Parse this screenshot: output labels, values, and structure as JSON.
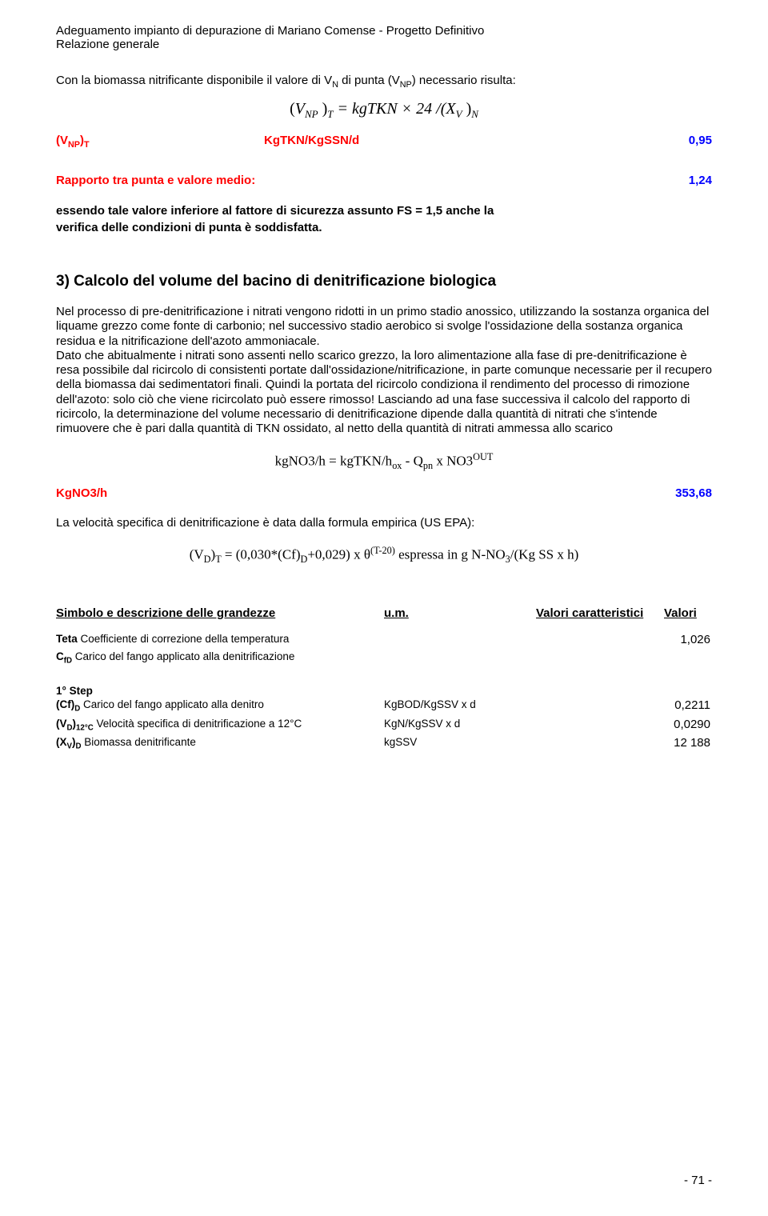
{
  "header": {
    "line1": "Adeguamento impianto di depurazione di Mariano Comense - Progetto Definitivo",
    "line2": "Relazione generale"
  },
  "intro_line": "Con la biomassa nitrificante disponibile il valore di V",
  "intro_sub1": "N",
  "intro_mid": " di punta (V",
  "intro_sub2": "NP",
  "intro_tail": ") necessario risulta:",
  "formula1": {
    "left_paren": "(",
    "V": "V",
    "NP": "NP",
    "close": ")",
    "T": "T",
    "eq": " = kgTKN × 24 /(X",
    "Vsub": "V",
    "close2": ")",
    "N": "N"
  },
  "vnp_row": {
    "label_sym": "(V",
    "label_sub": "NP",
    "label_close": ")",
    "label_T": "T",
    "unit": "KgTKN/KgSSN/d",
    "value": "0,95"
  },
  "rapporto": {
    "label": "Rapporto tra punta e valore medio:",
    "value": "1,24"
  },
  "essendo": {
    "l1": "essendo tale valore inferiore al  fattore di sicurezza assunto FS = 1,5 anche la",
    "l2": "verifica delle condizioni di punta è soddisfatta."
  },
  "section3_title": "3) Calcolo del volume del bacino di denitrificazione biologica",
  "para1": "Nel processo di pre-denitrificazione i nitrati vengono ridotti in un primo stadio anossico, utilizzando la sostanza organica del liquame grezzo come fonte di carbonio; nel successivo stadio aerobico si svolge l'ossidazione della sostanza organica residua e la nitrificazione dell'azoto ammoniacale.",
  "para2": "Dato che abitualmente i nitrati sono assenti nello scarico grezzo, la loro alimentazione alla fase di pre-denitrificazione è resa possibile dal ricircolo di consistenti portate dall'ossidazione/nitrificazione, in parte comunque necessarie per il recupero della biomassa dai sedimentatori finali. Quindi la portata del ricircolo condiziona il rendimento del processo di rimozione dell'azoto: solo ciò che viene ricircolato può essere rimosso! Lasciando ad una fase successiva il calcolo del rapporto di ricircolo, la determinazione del volume necessario di denitrificazione dipende dalla quantità di nitrati che s'intende rimuovere che è pari dalla quantità di TKN ossidato, al netto della quantità di nitrati ammessa allo scarico",
  "formula2": {
    "left": "kgNO3/h = kgTKN/h",
    "ox": "ox",
    "mid": " - Q",
    "pn": "pn",
    "mid2": " x  NO3",
    "out": "OUT"
  },
  "kgno3": {
    "label": "KgNO3/h",
    "value": "353,68"
  },
  "velocita_line": "La velocità specifica di denitrificazione è data dalla formula empirica (US EPA):",
  "formula3": {
    "left": "(V",
    "D": "D",
    "close": ")",
    "T": "T",
    "body": " = (0,030*(Cf)",
    "D2": "D",
    "body2": "+0,029) x θ",
    "exp": "(T-20)",
    "tail": "  espressa in g N-NO",
    "three": "3",
    "tail2": "/(Kg SS x h)"
  },
  "table_headers": {
    "h1": "Simbolo e descrizione delle grandezze",
    "h2": "u.m.",
    "h3": "Valori caratteristici",
    "h4": "Valori"
  },
  "teta_row": {
    "label_bold": "Teta",
    "label_rest": " Coefficiente di correzione della temperatura",
    "value": "1,026"
  },
  "cfd_row": {
    "label_bold": "C",
    "label_sub": "fD",
    "label_rest": " Carico del fango applicato alla denitrificazione"
  },
  "step1": "1° Step",
  "row_cf": {
    "sym": "(Cf)",
    "sub": "D",
    "desc": " Carico del fango applicato alla denitro",
    "unit": "KgBOD/KgSSV x d",
    "val": "0,2211"
  },
  "row_vd": {
    "sym": "(V",
    "sub1": "D",
    "close": ")",
    "sub2": "12°C",
    "desc": " Velocità specifica di denitrificazione a 12°C",
    "unit": "KgN/KgSSV x d",
    "val": "0,0290"
  },
  "row_xv": {
    "sym": "(X",
    "sub1": "V",
    "close": ")",
    "sub2": "D",
    "desc": " Biomassa denitrificante",
    "unit": "kgSSV",
    "val": "12 188"
  },
  "page_number": "- 71 -"
}
